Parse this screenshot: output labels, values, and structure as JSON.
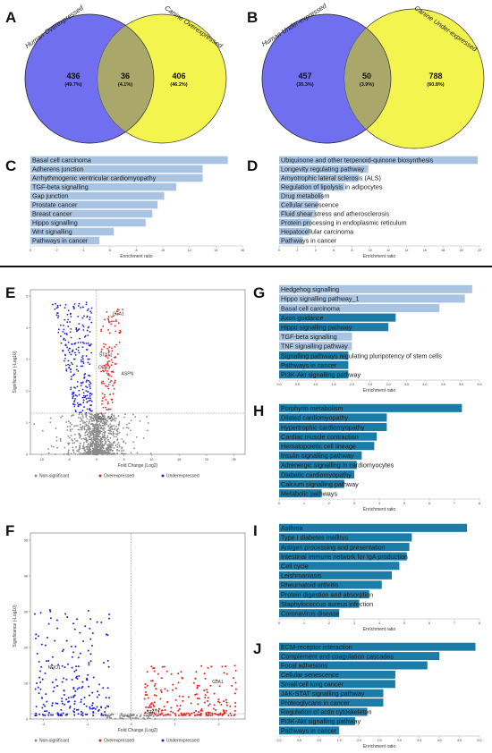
{
  "panels": {
    "A": {
      "letter": "A",
      "left_title": "Human Overexpressed",
      "right_title": "Canine Overexpressed",
      "left_count": "436",
      "left_pct": "(49.7%)",
      "shared_count": "36",
      "shared_pct": "(4.1%)",
      "right_count": "406",
      "right_pct": "(46.2%)"
    },
    "B": {
      "letter": "B",
      "left_title": "Human Under-expressed",
      "right_title": "Canine Under-expressed",
      "left_count": "457",
      "left_pct": "(35.3%)",
      "shared_count": "50",
      "shared_pct": "(3.9%)",
      "right_count": "788",
      "right_pct": "(60.8%)"
    },
    "C": {
      "letter": "C"
    },
    "D": {
      "letter": "D"
    },
    "E": {
      "letter": "E"
    },
    "F": {
      "letter": "F"
    },
    "G": {
      "letter": "G"
    },
    "H": {
      "letter": "H"
    },
    "I": {
      "letter": "I"
    },
    "J": {
      "letter": "J"
    }
  },
  "colors": {
    "venn_left": "#6f6ff0",
    "venn_right": "#f4f44e",
    "venn_overlap": "#a9a86a",
    "bar_light": "#a9c4e2",
    "bar_dark": "#1b7ca8",
    "overexpressed": "#e8221c",
    "underexpressed": "#1f22d6",
    "non_significant": "#8a8a8a"
  },
  "chart_data": [
    {
      "id": "C",
      "type": "bar",
      "orientation": "horizontal",
      "xlabel": "Enrichment ratio",
      "xticks": [
        "0",
        "2",
        "4",
        "6",
        "8",
        "10",
        "12",
        "14",
        "16"
      ],
      "xlim": [
        0,
        16
      ],
      "categories": [
        "Basal cell carcinoma",
        "Adherens junction",
        "Arrhythmogenic ventricular cardiomyopathy",
        "TGF-beta signalling",
        "Gap junction",
        "Prostate cancer",
        "Breast cancer",
        "Hippo signalling",
        "Wnt signalling",
        "Pathways in cancer"
      ],
      "values": [
        14.9,
        13.0,
        13.0,
        11.0,
        10.1,
        9.6,
        9.2,
        8.7,
        6.3,
        5.2
      ],
      "shade": [
        "light",
        "light",
        "light",
        "light",
        "light",
        "light",
        "light",
        "light",
        "light",
        "light"
      ]
    },
    {
      "id": "D",
      "type": "bar",
      "orientation": "horizontal",
      "xlabel": "Enrichment ratio",
      "xticks": [
        "0",
        "2",
        "4",
        "6",
        "8",
        "10",
        "12",
        "14",
        "16",
        "18",
        "20",
        "22"
      ],
      "xlim": [
        0,
        22
      ],
      "categories": [
        "Ubiquinone and other terpenoid-quinone biosynthesis",
        "Longevity regulating pathway",
        "Amyotrophic lateral sclerosis (ALS)",
        "Regulation of lipolysis in adipocytes",
        "Drug metabolism",
        "Cellular senescence",
        "Fluid shear stress and atherosclerosis",
        "Protein processing in endoplasmic reticulum",
        "Hepatocellular carcinoma",
        "Pathways in cancer"
      ],
      "values": [
        21.8,
        9.8,
        8.7,
        7.2,
        4.8,
        4.3,
        4.0,
        3.5,
        3.3,
        2.6
      ],
      "shade": [
        "light",
        "light",
        "light",
        "light",
        "light",
        "light",
        "light",
        "light",
        "light",
        "light"
      ]
    },
    {
      "id": "G",
      "type": "bar",
      "orientation": "horizontal",
      "xlabel": "Enrichment ratio",
      "xticks": [
        "0.0",
        "0.5",
        "1.0",
        "1.5",
        "2.0",
        "2.5",
        "3.0",
        "3.5",
        "4.0",
        "4.5",
        "5.0",
        "5.5"
      ],
      "xlim": [
        0,
        5.5
      ],
      "categories": [
        "Hedgehog signalling",
        "Hippo signalling pathway_1",
        "Basal cell carcinoma",
        "Axon guidance",
        "Hippo signalling pathway",
        "TGF-beta signalling",
        "TNF signalling pathway",
        "Signalling pathways regulating pluripotency of stem cells",
        "Pathways in cancer",
        "PI3K-Akt signalling pathway"
      ],
      "values": [
        5.3,
        5.1,
        4.4,
        3.2,
        3.0,
        2.0,
        2.0,
        1.9,
        1.9,
        1.9
      ],
      "shade": [
        "light",
        "light",
        "light",
        "dark",
        "dark",
        "light",
        "light",
        "dark",
        "dark",
        "dark"
      ]
    },
    {
      "id": "H",
      "type": "bar",
      "orientation": "horizontal",
      "xlabel": "Enrichment ratio",
      "xticks": [
        "0",
        "1",
        "2",
        "3",
        "4",
        "5",
        "6",
        "7",
        "8"
      ],
      "xlim": [
        0,
        8
      ],
      "categories": [
        "Porphyrin metabolism",
        "Dilated cardiomyopathy",
        "Hypertrophic cardiomyopathy",
        "Cardiac muscle contraction",
        "Hematopoietic cell lineage",
        "Insulin signalling pathway",
        "Adrenergic signalling in cardiomyocytes",
        "Diabetic cardiomyopathy",
        "Calcium signalling pathway",
        "Metabolic pathways"
      ],
      "values": [
        7.3,
        4.3,
        4.3,
        3.9,
        3.8,
        3.3,
        3.1,
        3.0,
        2.6,
        1.7
      ],
      "shade": [
        "dark",
        "dark",
        "dark",
        "dark",
        "dark",
        "dark",
        "dark",
        "dark",
        "dark",
        "dark"
      ]
    },
    {
      "id": "I",
      "type": "bar",
      "orientation": "horizontal",
      "xlabel": "Enrichment ratio",
      "xticks": [
        "0",
        "1",
        "2",
        "3",
        "4",
        "5",
        "6",
        "7",
        "8"
      ],
      "xlim": [
        0,
        8
      ],
      "categories": [
        "Asthma",
        "Type I diabetes mellitus",
        "Antigen processing and presentation",
        "Intestinal immune network for IgA production",
        "Cell cycle",
        "Leishmaniasis",
        "Rheumatoid arthritis",
        "Protein digestion and absorption",
        "Staphylococcus aureus infection",
        "Coronavirus disease"
      ],
      "values": [
        7.5,
        5.3,
        5.2,
        5.1,
        4.8,
        4.5,
        4.1,
        3.6,
        3.2,
        2.4
      ],
      "shade": [
        "dark",
        "dark",
        "dark",
        "dark",
        "dark",
        "dark",
        "dark",
        "dark",
        "dark",
        "dark"
      ]
    },
    {
      "id": "J",
      "type": "bar",
      "orientation": "horizontal",
      "xlabel": "Enrichment ratio",
      "xticks": [
        "0.0",
        "0.5",
        "1.0",
        "1.5",
        "2.0",
        "2.5",
        "3.0",
        "3.5",
        "4.0",
        "4.5",
        "5.0"
      ],
      "xlim": [
        0,
        5.0
      ],
      "categories": [
        "ECM-receptor interaction",
        "Complement and coagulation cascades",
        "Focal adhesions",
        "Cellular senescence",
        "Small cell lung cancer",
        "JAK-STAT signalling pathway",
        "Proteoglycans in cancer",
        "Regulation of actin cytoskeleton",
        "PI3K-Akt signalling pathway",
        "Pathways in cancer"
      ],
      "values": [
        4.9,
        4.0,
        3.7,
        2.9,
        2.9,
        2.6,
        2.6,
        2.2,
        1.9,
        1.5
      ],
      "shade": [
        "dark",
        "dark",
        "dark",
        "dark",
        "dark",
        "dark",
        "dark",
        "dark",
        "dark",
        "dark"
      ]
    },
    {
      "id": "E",
      "type": "scatter",
      "xlabel": "Fold Change (Log2)",
      "ylabel": "Significance (-Log10)",
      "xticks": [
        "-10",
        "-5",
        "0",
        "5",
        "10",
        "15",
        "20",
        "25"
      ],
      "xlim": [
        -12,
        27
      ],
      "yticks": [
        "0",
        "1",
        "2",
        "3",
        "4",
        "5"
      ],
      "ylim": [
        0,
        5.2
      ],
      "gene_labels": [
        {
          "text": "GJA1",
          "x": 3.0,
          "y": 4.4
        },
        {
          "text": "STAT1",
          "x": 0.5,
          "y": 3.1
        },
        {
          "text": "CCN1",
          "x": 0.3,
          "y": 2.7
        },
        {
          "text": "ASPN",
          "x": 4.5,
          "y": 2.5
        },
        {
          "text": "COL3A1",
          "x": 0.3,
          "y": 1.1
        }
      ],
      "legend": [
        "Non-significant",
        "Overexpressed",
        "Underexpressed"
      ]
    },
    {
      "id": "F",
      "type": "scatter",
      "xlabel": "Fold Change (Log2)",
      "ylabel": "Significance (-Log10)",
      "xticks": [
        "-2",
        "-1",
        "0",
        "1",
        "2"
      ],
      "xlim": [
        -2.3,
        2.6
      ],
      "yticks": [
        "0",
        "10",
        "20",
        "30",
        "40",
        "50"
      ],
      "ylim": [
        0,
        52
      ],
      "gene_labels": [
        {
          "text": "NQO1",
          "x": -1.9,
          "y": 14
        },
        {
          "text": "GJA1",
          "x": 1.85,
          "y": 10
        },
        {
          "text": "STAT1",
          "x": 0.35,
          "y": 1.5
        }
      ],
      "legend": [
        "Non-significant",
        "Overexpressed",
        "Underexpressed"
      ]
    }
  ]
}
